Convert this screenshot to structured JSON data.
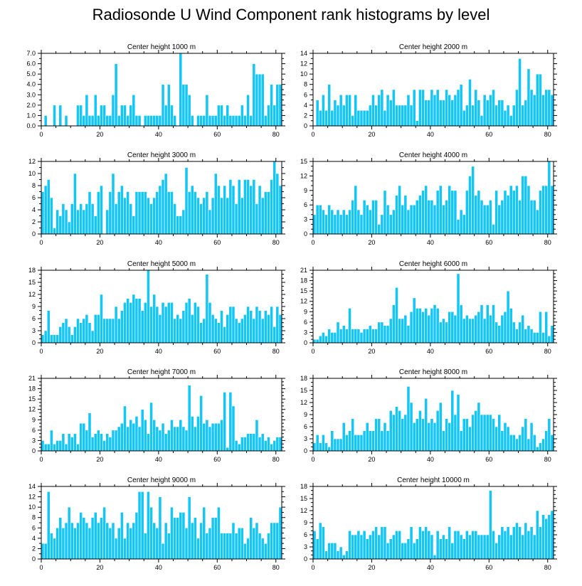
{
  "title": "Radiosonde U Wind Component rank histograms by level",
  "chart_data": [
    {
      "type": "bar",
      "title": "Center height 1000 m",
      "xlim": [
        0,
        82
      ],
      "xticks": [
        0,
        20,
        40,
        60,
        80
      ],
      "xtick_labels": [
        "0",
        "20",
        "40",
        "60",
        "80"
      ],
      "ylim": [
        0,
        7
      ],
      "yticks": [
        0,
        1,
        2,
        3,
        4,
        5,
        6,
        7
      ],
      "ytick_labels": [
        "0.0",
        "1.0",
        "2.0",
        "3.0",
        "4.0",
        "5.0",
        "6.0",
        "7.0"
      ],
      "values": [
        0,
        1,
        0,
        0,
        2,
        0,
        2,
        0,
        1,
        0,
        0,
        0,
        2,
        2,
        1,
        3,
        1,
        1,
        3,
        1,
        2,
        2,
        1,
        1,
        3,
        6,
        1,
        2,
        2,
        1,
        2,
        3,
        1,
        1,
        0,
        1,
        1,
        1,
        1,
        1,
        1,
        4,
        2,
        4,
        2,
        1,
        0,
        7,
        4,
        4,
        3,
        1,
        0,
        1,
        1,
        1,
        3,
        1,
        1,
        1,
        2,
        2,
        1,
        2,
        1,
        1,
        1,
        1,
        2,
        1,
        3,
        1,
        6,
        5,
        5,
        5,
        1,
        2,
        4,
        2,
        4,
        4
      ]
    },
    {
      "type": "bar",
      "title": "Center height 2000 m",
      "xlim": [
        0,
        82
      ],
      "xticks": [
        0,
        20,
        40,
        60,
        80
      ],
      "xtick_labels": [
        "0",
        "20",
        "40",
        "60",
        "80"
      ],
      "ylim": [
        0,
        14
      ],
      "yticks": [
        0,
        2,
        4,
        6,
        8,
        10,
        12,
        14
      ],
      "ytick_labels": [
        "0",
        "2",
        "4",
        "6",
        "8",
        "10",
        "12",
        "14"
      ],
      "values": [
        0,
        5,
        3,
        6,
        3,
        8,
        3,
        5,
        4,
        6,
        4,
        6,
        6,
        2,
        6,
        3,
        3,
        3,
        3,
        4,
        6,
        4,
        6,
        7,
        3,
        6,
        5,
        7,
        4,
        4,
        4,
        4,
        6,
        4,
        7,
        1,
        7,
        7,
        5,
        5,
        7,
        6,
        7,
        5,
        5,
        7,
        6,
        5,
        6,
        7,
        8,
        3,
        4,
        9,
        4,
        7,
        5,
        2,
        6,
        5,
        6,
        7,
        4,
        5,
        5,
        3,
        4,
        2,
        4,
        7,
        13,
        4,
        5,
        11,
        7,
        6,
        10,
        10,
        6,
        7,
        7,
        6
      ]
    },
    {
      "type": "bar",
      "title": "Center height 3000 m",
      "xlim": [
        0,
        82
      ],
      "xticks": [
        0,
        20,
        40,
        60,
        80
      ],
      "xtick_labels": [
        "0",
        "20",
        "40",
        "60",
        "80"
      ],
      "ylim": [
        0,
        12
      ],
      "yticks": [
        0,
        2,
        4,
        6,
        8,
        10,
        12
      ],
      "ytick_labels": [
        "0",
        "2",
        "4",
        "6",
        "8",
        "10",
        "12"
      ],
      "values": [
        7,
        8,
        9,
        6,
        1,
        4,
        3,
        5,
        4,
        2,
        5,
        10,
        4,
        5,
        4,
        5,
        7,
        5,
        3,
        7,
        8,
        0,
        4,
        7,
        10,
        5,
        7,
        8,
        6,
        7,
        5,
        3,
        7,
        7,
        7,
        7,
        6,
        5,
        6,
        7,
        8,
        9,
        10,
        7,
        7,
        5,
        3,
        3,
        4,
        11,
        7,
        8,
        7,
        6,
        5,
        6,
        7,
        4,
        6,
        10,
        8,
        6,
        8,
        6,
        9,
        8,
        5,
        9,
        6,
        9,
        9,
        8,
        9,
        5,
        8,
        6,
        7,
        7,
        9,
        12,
        10,
        8
      ]
    },
    {
      "type": "bar",
      "title": "Center height 4000 m",
      "xlim": [
        0,
        82
      ],
      "xticks": [
        0,
        20,
        40,
        60,
        80
      ],
      "xtick_labels": [
        "0",
        "20",
        "40",
        "60",
        "80"
      ],
      "ylim": [
        0,
        15
      ],
      "yticks": [
        0,
        3,
        6,
        9,
        12,
        15
      ],
      "ytick_labels": [
        "0",
        "3",
        "6",
        "9",
        "12",
        "15"
      ],
      "values": [
        4,
        6,
        6,
        5,
        4,
        6,
        5,
        4,
        5,
        4,
        5,
        4,
        5,
        7,
        10,
        5,
        4,
        7,
        6,
        5,
        7,
        7,
        2,
        4,
        9,
        6,
        4,
        5,
        8,
        10,
        6,
        8,
        5,
        6,
        6,
        7,
        8,
        9,
        10,
        7,
        7,
        6,
        9,
        10,
        6,
        7,
        10,
        9,
        9,
        3,
        5,
        4,
        9,
        12,
        14,
        8,
        9,
        7,
        6,
        6,
        7,
        2,
        9,
        6,
        7,
        9,
        8,
        10,
        9,
        10,
        7,
        12,
        12,
        10,
        7,
        7,
        5,
        9,
        10,
        10,
        15,
        10
      ]
    },
    {
      "type": "bar",
      "title": "Center height 5000 m",
      "xlim": [
        0,
        82
      ],
      "xticks": [
        0,
        20,
        40,
        60,
        80
      ],
      "xtick_labels": [
        "0",
        "20",
        "40",
        "60",
        "80"
      ],
      "ylim": [
        0,
        18
      ],
      "yticks": [
        0,
        3,
        6,
        9,
        12,
        15,
        18
      ],
      "ytick_labels": [
        "0",
        "3",
        "6",
        "9",
        "12",
        "15",
        "18"
      ],
      "values": [
        2,
        3,
        8,
        2,
        2,
        2,
        4,
        5,
        6,
        4,
        2,
        4,
        6,
        5,
        6,
        7,
        5,
        3,
        7,
        7,
        12,
        6,
        6,
        6,
        6,
        9,
        6,
        8,
        10,
        11,
        10,
        12,
        11,
        11,
        8,
        10,
        18,
        9,
        12,
        9,
        7,
        10,
        9,
        10,
        10,
        6,
        7,
        6,
        8,
        10,
        11,
        7,
        10,
        9,
        5,
        6,
        17,
        10,
        7,
        6,
        5,
        8,
        4,
        7,
        9,
        9,
        6,
        5,
        6,
        7,
        9,
        8,
        6,
        9,
        8,
        6,
        8,
        7,
        9,
        4,
        9,
        7
      ]
    },
    {
      "type": "bar",
      "title": "Center height 6000 m",
      "xlim": [
        0,
        82
      ],
      "xticks": [
        0,
        20,
        40,
        60,
        80
      ],
      "xtick_labels": [
        "0",
        "20",
        "40",
        "60",
        "80"
      ],
      "ylim": [
        0,
        21
      ],
      "yticks": [
        0,
        3,
        6,
        9,
        12,
        15,
        18,
        21
      ],
      "ytick_labels": [
        "0",
        "3",
        "6",
        "9",
        "12",
        "15",
        "18",
        "21"
      ],
      "values": [
        1,
        1,
        2,
        3,
        2,
        4,
        3,
        3,
        6,
        4,
        5,
        4,
        10,
        4,
        4,
        4,
        3,
        4,
        4,
        5,
        4,
        4,
        6,
        6,
        5,
        5,
        7,
        11,
        16,
        7,
        7,
        8,
        5,
        9,
        13,
        10,
        10,
        9,
        10,
        8,
        10,
        11,
        10,
        6,
        7,
        6,
        9,
        9,
        8,
        20,
        11,
        7,
        8,
        7,
        7,
        8,
        9,
        11,
        7,
        11,
        8,
        11,
        6,
        5,
        8,
        9,
        15,
        10,
        6,
        4,
        6,
        8,
        4,
        5,
        4,
        3,
        3,
        9,
        3,
        9,
        2,
        5
      ]
    },
    {
      "type": "bar",
      "title": "Center height 7000 m",
      "xlim": [
        0,
        82
      ],
      "xticks": [
        0,
        20,
        40,
        60,
        80
      ],
      "xtick_labels": [
        "0",
        "20",
        "40",
        "60",
        "80"
      ],
      "ylim": [
        0,
        21
      ],
      "yticks": [
        0,
        3,
        6,
        9,
        12,
        15,
        18,
        21
      ],
      "ytick_labels": [
        "0",
        "3",
        "6",
        "9",
        "12",
        "15",
        "18",
        "21"
      ],
      "values": [
        3,
        2,
        2,
        6,
        2,
        3,
        3,
        5,
        2,
        5,
        4,
        5,
        2,
        8,
        8,
        6,
        11,
        4,
        5,
        6,
        5,
        3,
        5,
        4,
        6,
        6,
        7,
        8,
        13,
        7,
        9,
        8,
        10,
        7,
        12,
        9,
        5,
        14,
        9,
        7,
        6,
        8,
        5,
        6,
        9,
        7,
        7,
        9,
        7,
        6,
        19,
        10,
        7,
        10,
        16,
        8,
        9,
        7,
        8,
        8,
        8,
        9,
        17,
        1,
        17,
        13,
        3,
        2,
        4,
        4,
        5,
        5,
        5,
        9,
        4,
        5,
        3,
        4,
        2,
        3,
        4,
        4
      ]
    },
    {
      "type": "bar",
      "title": "Center height 8000 m",
      "xlim": [
        0,
        82
      ],
      "xticks": [
        0,
        20,
        40,
        60,
        80
      ],
      "xtick_labels": [
        "0",
        "20",
        "40",
        "60",
        "80"
      ],
      "ylim": [
        0,
        18
      ],
      "yticks": [
        0,
        3,
        6,
        9,
        12,
        15,
        18
      ],
      "ytick_labels": [
        "0",
        "3",
        "6",
        "9",
        "12",
        "15",
        "18"
      ],
      "values": [
        2,
        4,
        2,
        4,
        2,
        1,
        5,
        3,
        3,
        3,
        7,
        4,
        5,
        8,
        4,
        4,
        4,
        5,
        7,
        5,
        5,
        8,
        8,
        5,
        7,
        5,
        10,
        9,
        11,
        10,
        8,
        9,
        16,
        12,
        7,
        8,
        10,
        8,
        13,
        7,
        8,
        7,
        10,
        12,
        5,
        8,
        7,
        15,
        9,
        14,
        5,
        8,
        8,
        6,
        9,
        10,
        12,
        9,
        9,
        9,
        9,
        8,
        6,
        9,
        5,
        7,
        6,
        4,
        4,
        3,
        4,
        6,
        8,
        3,
        7,
        4,
        1,
        2,
        3,
        5,
        8,
        4
      ]
    },
    {
      "type": "bar",
      "title": "Center height 9000 m",
      "xlim": [
        0,
        82
      ],
      "xticks": [
        0,
        20,
        40,
        60,
        80
      ],
      "xtick_labels": [
        "0",
        "20",
        "40",
        "60",
        "80"
      ],
      "ylim": [
        0,
        14
      ],
      "yticks": [
        0,
        2,
        4,
        6,
        8,
        10,
        12,
        14
      ],
      "ytick_labels": [
        "0",
        "2",
        "4",
        "6",
        "8",
        "10",
        "12",
        "14"
      ],
      "values": [
        3,
        3,
        13,
        5,
        4,
        6,
        8,
        6,
        7,
        10,
        7,
        6,
        7,
        9,
        8,
        7,
        6,
        8,
        9,
        7,
        8,
        10,
        7,
        6,
        7,
        4,
        6,
        9,
        4,
        7,
        6,
        7,
        9,
        13,
        13,
        5,
        13,
        10,
        7,
        6,
        12,
        3,
        7,
        5,
        10,
        8,
        8,
        9,
        9,
        6,
        12,
        7,
        8,
        4,
        7,
        10,
        5,
        6,
        8,
        8,
        10,
        5,
        5,
        5,
        5,
        7,
        5,
        6,
        6,
        3,
        4,
        8,
        6,
        7,
        5,
        4,
        3,
        5,
        7,
        7,
        7,
        10
      ]
    },
    {
      "type": "bar",
      "title": "Center height 10000 m",
      "xlim": [
        0,
        82
      ],
      "xticks": [
        0,
        20,
        40,
        60,
        80
      ],
      "xtick_labels": [
        "0",
        "20",
        "40",
        "60",
        "80"
      ],
      "ylim": [
        0,
        18
      ],
      "yticks": [
        0,
        3,
        6,
        9,
        12,
        15,
        18
      ],
      "ytick_labels": [
        "0",
        "3",
        "6",
        "9",
        "12",
        "15",
        "18"
      ],
      "values": [
        7,
        5,
        9,
        8,
        2,
        4,
        4,
        4,
        2,
        3,
        1,
        2,
        7,
        6,
        6,
        7,
        6,
        7,
        5,
        6,
        7,
        8,
        6,
        8,
        8,
        4,
        5,
        6,
        7,
        7,
        4,
        4,
        5,
        8,
        4,
        5,
        8,
        7,
        8,
        7,
        6,
        1,
        7,
        5,
        6,
        5,
        8,
        4,
        7,
        7,
        6,
        5,
        7,
        6,
        7,
        7,
        6,
        6,
        6,
        6,
        17,
        7,
        4,
        6,
        8,
        7,
        8,
        6,
        8,
        9,
        8,
        6,
        9,
        7,
        8,
        6,
        12,
        8,
        11,
        10,
        11,
        12
      ]
    }
  ]
}
